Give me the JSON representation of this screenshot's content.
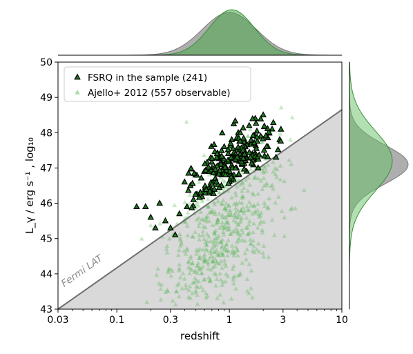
{
  "chart_data": {
    "type": "scatter",
    "xlabel": "redshift",
    "ylabel": "L_γ / erg s⁻¹ , log₁₀",
    "xscale": "log",
    "xlim": [
      0.03,
      10
    ],
    "ylim": [
      43,
      50
    ],
    "xticks": [
      0.03,
      0.1,
      0.3,
      1,
      3,
      10
    ],
    "xtick_labels": [
      "0.03",
      "0.1",
      "0.3",
      "1",
      "3",
      "10"
    ],
    "yticks": [
      43,
      44,
      45,
      46,
      47,
      48,
      49,
      50
    ],
    "ytick_labels": [
      "43",
      "44",
      "45",
      "46",
      "47",
      "48",
      "49",
      "50"
    ],
    "grid": false,
    "legend_position": "top-left",
    "sensitivity_line": {
      "label": "Fermi LAT",
      "points": [
        [
          0.03,
          43.0
        ],
        [
          10,
          48.65
        ]
      ],
      "shade_color": "#d9d9d9",
      "line_color": "#6e6e6e"
    },
    "series": [
      {
        "name": "FSRQ in the sample (241)",
        "marker": "triangle",
        "face_color": "#1e7a1e",
        "edge_color": "#000000",
        "count": 241,
        "points": [
          [
            0.15,
            45.9
          ],
          [
            0.18,
            45.9
          ],
          [
            0.2,
            45.6
          ],
          [
            0.22,
            45.3
          ],
          [
            0.24,
            46.0
          ],
          [
            0.27,
            45.5
          ],
          [
            0.3,
            45.3
          ],
          [
            0.33,
            45.1
          ],
          [
            0.36,
            45.7
          ],
          [
            0.4,
            46.6
          ],
          [
            0.42,
            45.9
          ],
          [
            0.45,
            46.5
          ],
          [
            0.48,
            46.1
          ],
          [
            0.5,
            46.8
          ],
          [
            0.55,
            46.3
          ],
          [
            0.6,
            46.9
          ],
          [
            0.65,
            46.4
          ],
          [
            0.7,
            47.0
          ],
          [
            0.75,
            46.7
          ],
          [
            0.8,
            47.3
          ],
          [
            0.85,
            46.5
          ],
          [
            0.9,
            47.6
          ],
          [
            0.95,
            46.9
          ],
          [
            1.0,
            47.2
          ],
          [
            1.05,
            47.8
          ],
          [
            1.1,
            46.8
          ],
          [
            1.15,
            47.5
          ],
          [
            1.2,
            48.0
          ],
          [
            1.3,
            47.1
          ],
          [
            1.4,
            47.7
          ],
          [
            1.5,
            48.2
          ],
          [
            1.6,
            47.4
          ],
          [
            1.7,
            48.4
          ],
          [
            1.8,
            47.0
          ],
          [
            1.9,
            47.9
          ],
          [
            2.0,
            48.5
          ],
          [
            2.2,
            47.6
          ],
          [
            2.4,
            48.1
          ],
          [
            2.6,
            47.3
          ],
          [
            2.8,
            47.8
          ]
        ]
      },
      {
        "name": "Ajello+ 2012 (557 observable)",
        "marker": "triangle",
        "face_color": "#49b449",
        "edge_color": "none",
        "alpha": 0.3,
        "count": 557,
        "points": []
      }
    ],
    "marginals": {
      "top": {
        "axis": "redshift",
        "colors": [
          "#808080",
          "#66c266"
        ]
      },
      "right": {
        "axis": "luminosity",
        "colors": [
          "#808080",
          "#66c266"
        ]
      }
    }
  }
}
